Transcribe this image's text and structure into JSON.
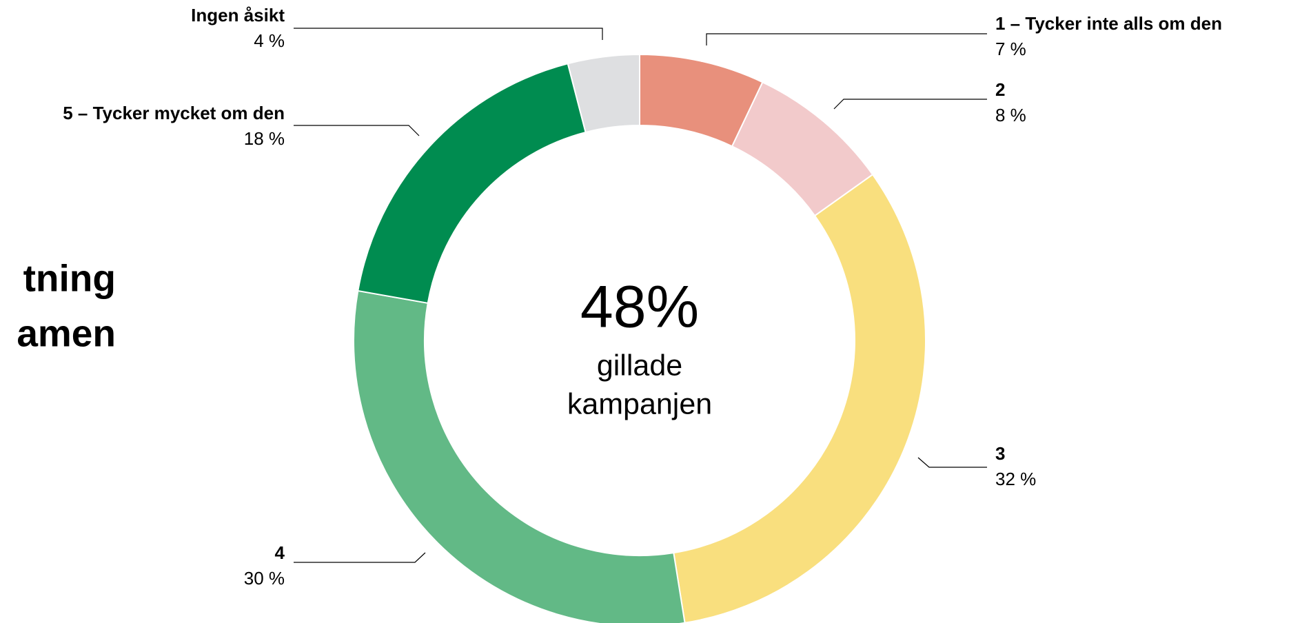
{
  "chart_data": {
    "type": "donut",
    "title": [
      "tning",
      "amen"
    ],
    "categories": [
      "1 – Tycker inte alls om den",
      "2",
      "3",
      "4",
      "5 – Tycker mycket om den",
      "Ingen åsikt"
    ],
    "values": [
      7,
      8,
      32,
      30,
      18,
      4
    ],
    "value_labels": [
      "7 %",
      "8 %",
      "32 %",
      "30 %",
      "18 %",
      "4 %"
    ],
    "colors": [
      "#e8907c",
      "#f2cacb",
      "#f9df7e",
      "#62b986",
      "#008c50",
      "#dedfe1"
    ],
    "center_value": "48%",
    "center_text": [
      "gillade",
      "kampanjen"
    ]
  }
}
